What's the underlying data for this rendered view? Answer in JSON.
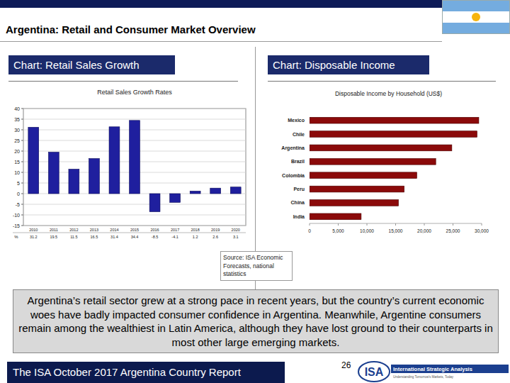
{
  "page": {
    "title": "Argentina: Retail and Consumer Market Overview",
    "panel_titles": [
      "Chart: Retail Sales Growth",
      "Chart: Disposable Income"
    ],
    "source": "Source: ISA Economic Forecasts, national statistics",
    "body": "Argentina’s retail sector grew at a strong pace in recent years, but the country’s current economic woes have badly impacted consumer confidence in Argentina.  Meanwhile, Argentine consumers remain among the wealthiest in Latin America, although they have lost ground to their counterparts in most other large emerging markets.",
    "footer": "The ISA October 2017 Argentina Country Report",
    "page_number": 26,
    "logo": {
      "mark": "ISA",
      "name": "International Strategic Analysis",
      "tagline": "Understanding Tomorrow's Markets, Today"
    }
  },
  "chart_data": [
    {
      "type": "bar",
      "title": "Retail Sales Growth Rates",
      "categories": [
        "2010",
        "2011",
        "2012",
        "2013",
        "2014",
        "2015",
        "2016",
        "2017",
        "2018",
        "2019",
        "2020"
      ],
      "values": [
        31.2,
        19.5,
        11.5,
        16.5,
        31.4,
        34.4,
        -8.5,
        -4.1,
        1.2,
        2.6,
        3.1
      ],
      "color": "#1f1f9e",
      "ylim": [
        -15,
        40
      ],
      "yticks": [
        -15,
        -10,
        -5,
        0,
        5,
        10,
        15,
        20,
        25,
        30,
        35,
        40
      ],
      "grid": true,
      "data_labels": true,
      "data_label_caption": "%"
    },
    {
      "type": "bar",
      "orientation": "horizontal",
      "title": "Disposable Income by Household (US$)",
      "categories": [
        "Mexico",
        "Chile",
        "Argentina",
        "Brazil",
        "Colombia",
        "Peru",
        "China",
        "India"
      ],
      "values": [
        29500,
        29200,
        24800,
        22000,
        18700,
        16500,
        15500,
        9000
      ],
      "color": "#8b0a0a",
      "xlim": [
        0,
        30000
      ],
      "xticks": [
        0,
        {
          "value": 5000,
          "label": "5,000"
        },
        {
          "value": 10000,
          "label": "10,000"
        },
        {
          "value": 15000,
          "label": "15,000"
        },
        {
          "value": 20000,
          "label": "20,000"
        },
        {
          "value": 25000,
          "label": "25,000"
        },
        {
          "value": 30000,
          "label": "30,000"
        }
      ],
      "grid": false
    }
  ]
}
